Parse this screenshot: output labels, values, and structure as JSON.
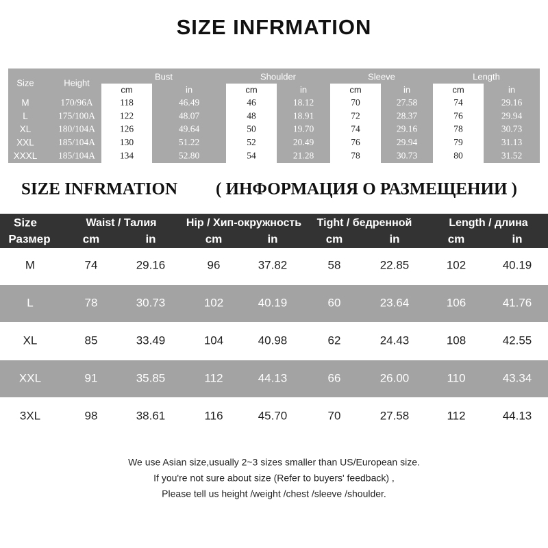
{
  "title": "SIZE INFRMATION",
  "table1": {
    "size_header": "Size",
    "height_header": "Height",
    "groups": [
      "Bust",
      "Shoulder",
      "Sleeve",
      "Length"
    ],
    "units": [
      "cm",
      "in",
      "cm",
      "in",
      "cm",
      "in",
      "cm",
      "in"
    ],
    "rows": [
      [
        "M",
        "170/96A",
        "118",
        "46.49",
        "46",
        "18.12",
        "70",
        "27.58",
        "74",
        "29.16"
      ],
      [
        "L",
        "175/100A",
        "122",
        "48.07",
        "48",
        "18.91",
        "72",
        "28.37",
        "76",
        "29.94"
      ],
      [
        "XL",
        "180/104A",
        "126",
        "49.64",
        "50",
        "19.70",
        "74",
        "29.16",
        "78",
        "30.73"
      ],
      [
        "XXL",
        "185/104A",
        "130",
        "51.22",
        "52",
        "20.49",
        "76",
        "29.94",
        "79",
        "31.13"
      ],
      [
        "XXXL",
        "185/104A",
        "134",
        "52.80",
        "54",
        "21.28",
        "78",
        "30.73",
        "80",
        "31.52"
      ]
    ]
  },
  "subtitle": {
    "en": "SIZE INFRMATION",
    "ru": "( ИНФОРМАЦИЯ О РАЗМЕЩЕНИИ )"
  },
  "table2": {
    "size_header": [
      "Size",
      "Размер"
    ],
    "groups": [
      "Waist / Талия",
      "Hip / Хип-окружность",
      "Tight / бедренной",
      "Length / длина"
    ],
    "units": [
      "cm",
      "in",
      "cm",
      "in",
      "cm",
      "in",
      "cm",
      "in"
    ],
    "rows": [
      [
        "M",
        "74",
        "29.16",
        "96",
        "37.82",
        "58",
        "22.85",
        "102",
        "40.19"
      ],
      [
        "L",
        "78",
        "30.73",
        "102",
        "40.19",
        "60",
        "23.64",
        "106",
        "41.76"
      ],
      [
        "XL",
        "85",
        "33.49",
        "104",
        "40.98",
        "62",
        "24.43",
        "108",
        "42.55"
      ],
      [
        "XXL",
        "91",
        "35.85",
        "112",
        "44.13",
        "66",
        "26.00",
        "110",
        "43.34"
      ],
      [
        "3XL",
        "98",
        "38.61",
        "116",
        "45.70",
        "70",
        "27.58",
        "112",
        "44.13"
      ]
    ]
  },
  "notes": [
    "We use Asian size,usually 2~3 sizes smaller than US/European size.",
    "If you're not sure about size  (Refer to buyers' feedback) ,",
    "Please tell us height /weight /chest /sleeve /shoulder."
  ]
}
